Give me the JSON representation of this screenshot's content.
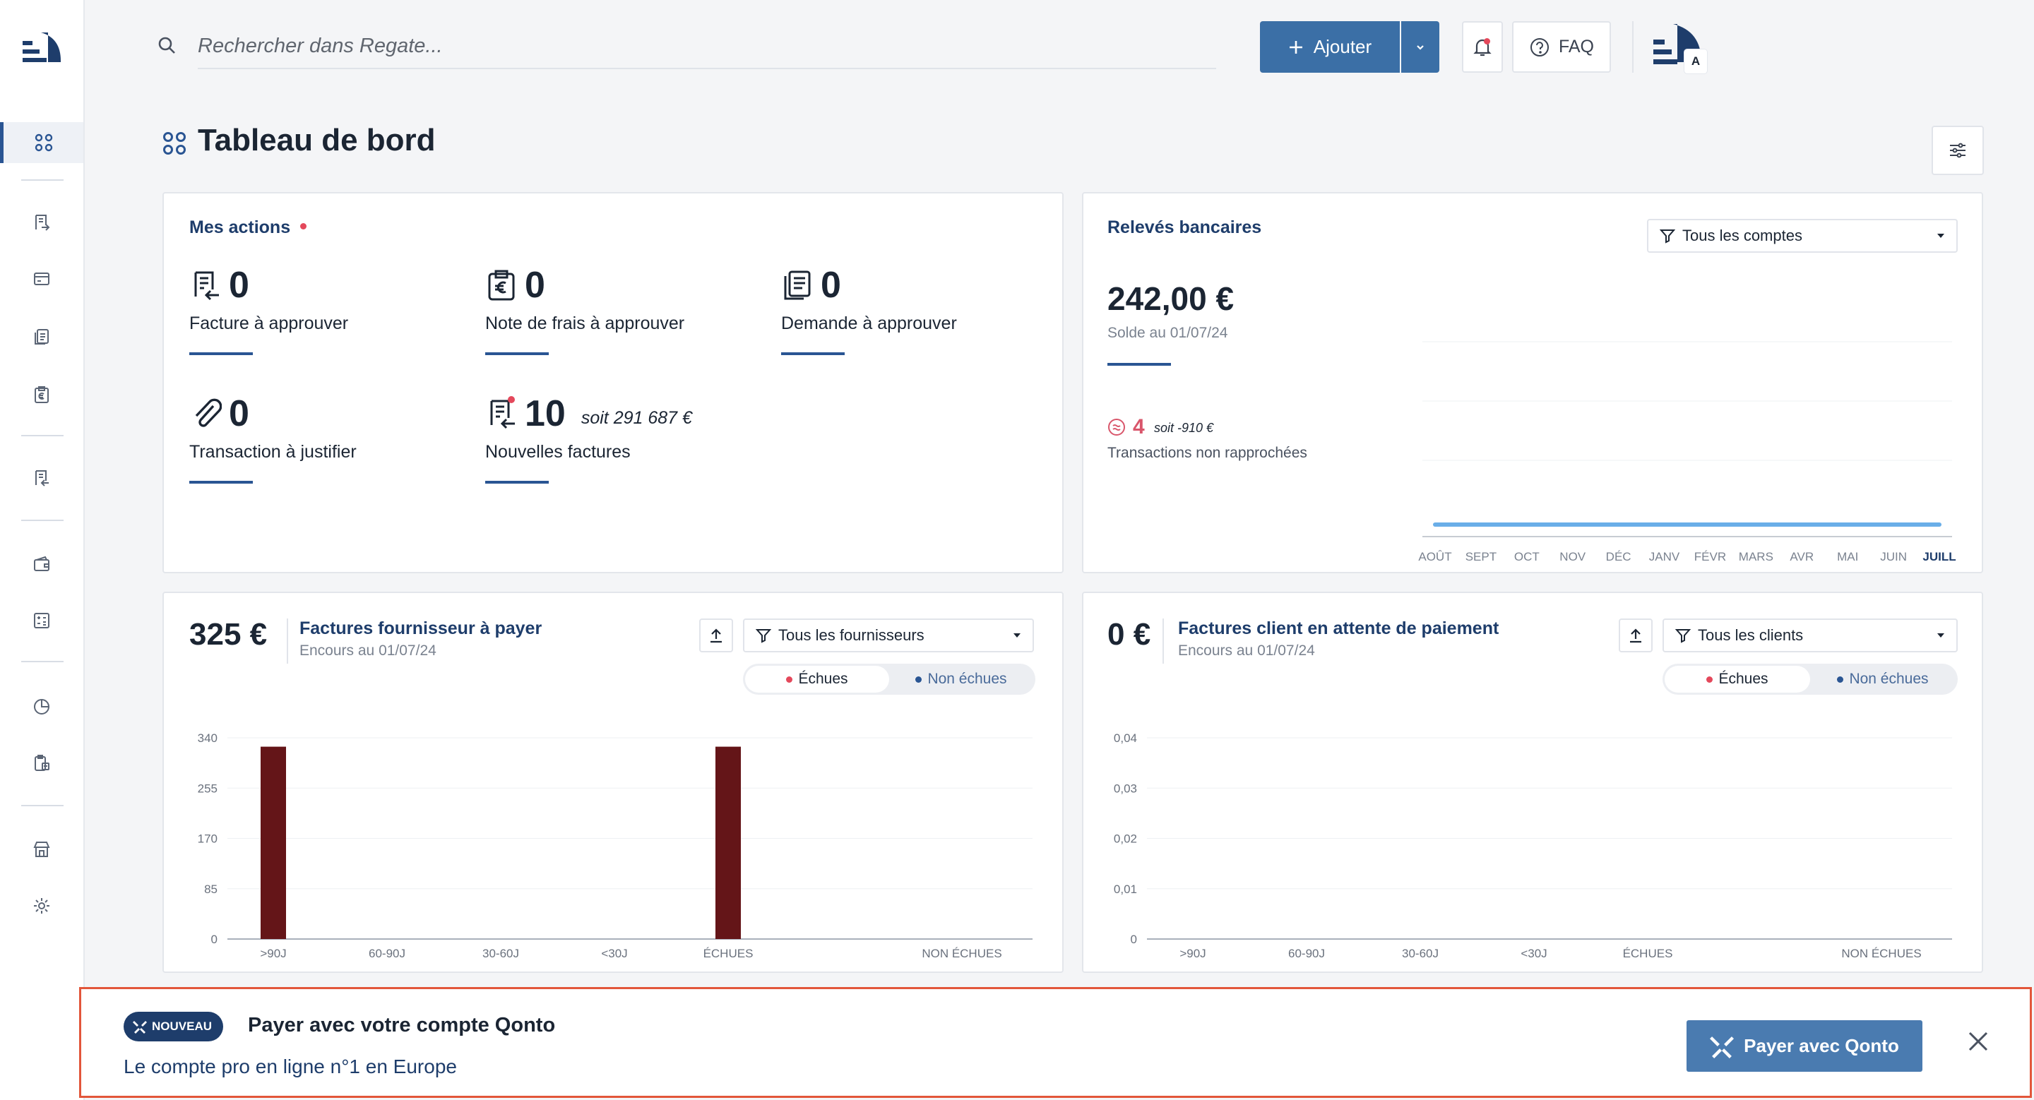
{
  "header": {
    "search_placeholder": "Rechercher dans Regate...",
    "add_label": "Ajouter",
    "faq_label": "FAQ",
    "avatar_initial": "A"
  },
  "page": {
    "title": "Tableau de bord"
  },
  "actions": {
    "title": "Mes actions",
    "items": [
      {
        "icon": "invoice-icon",
        "value": "0",
        "label": "Facture à approuver"
      },
      {
        "icon": "expense-note-icon",
        "value": "0",
        "label": "Note de frais à approuver"
      },
      {
        "icon": "documents-icon",
        "value": "0",
        "label": "Demande à approuver"
      },
      {
        "icon": "paperclip-icon",
        "value": "0",
        "label": "Transaction à justifier"
      },
      {
        "icon": "invoice-icon",
        "value": "10",
        "extra": "soit 291 687 €",
        "label": "Nouvelles factures"
      }
    ]
  },
  "bank": {
    "title": "Relevés bancaires",
    "filter": "Tous les comptes",
    "balance": "242,00 €",
    "balance_date": "Solde au 01/07/24",
    "unmatched_count": "4",
    "unmatched_amount": "soit -910 €",
    "unmatched_label": "Transactions non rapprochées",
    "months": [
      "AOÛT",
      "SEPT",
      "OCT",
      "NOV",
      "DÉC",
      "JANV",
      "FÉVR",
      "MARS",
      "AVR",
      "MAI",
      "JUIN",
      "JUILL"
    ],
    "active_month": "JUILL"
  },
  "supplier": {
    "amount": "325 €",
    "title": "Factures fournisseur à payer",
    "subtitle": "Encours au 01/07/24",
    "filter": "Tous les fournisseurs",
    "seg_due": "Échues",
    "seg_not_due": "Non échues"
  },
  "client": {
    "amount": "0 €",
    "title": "Factures client en attente de paiement",
    "subtitle": "Encours au 01/07/24",
    "filter": "Tous les clients",
    "seg_due": "Échues",
    "seg_not_due": "Non échues"
  },
  "banner": {
    "badge": "NOUVEAU",
    "title": "Payer avec votre compte Qonto",
    "subtitle": "Le compte pro en ligne n°1 en Europe",
    "button": "Payer avec Qonto"
  },
  "colors": {
    "accent": "#3b6fa6",
    "navy": "#1e3d6b",
    "bar": "#641518",
    "alert": "#e4485b",
    "line": "#6aaee8"
  },
  "chart_data": [
    {
      "type": "bar",
      "categories": [
        ">90J",
        "60-90J",
        "30-60J",
        "<30J",
        "ÉCHUES",
        "NON ÉCHUES"
      ],
      "values": [
        325,
        0,
        0,
        0,
        325,
        0
      ],
      "yticks": [
        "0",
        "85",
        "170",
        "255",
        "340"
      ],
      "ylim": [
        0,
        340
      ]
    },
    {
      "type": "bar",
      "categories": [
        ">90J",
        "60-90J",
        "30-60J",
        "<30J",
        "ÉCHUES",
        "NON ÉCHUES"
      ],
      "values": [
        0,
        0,
        0,
        0,
        0,
        0
      ],
      "yticks": [
        "0",
        "0,01",
        "0,02",
        "0,03",
        "0,04"
      ],
      "ylim": [
        0,
        0.04
      ]
    },
    {
      "type": "line",
      "categories": [
        "AOÛT",
        "SEPT",
        "OCT",
        "NOV",
        "DÉC",
        "JANV",
        "FÉVR",
        "MARS",
        "AVR",
        "MAI",
        "JUIN",
        "JUILL"
      ],
      "values": [
        242,
        242,
        242,
        242,
        242,
        242,
        242,
        242,
        242,
        242,
        242,
        242
      ]
    }
  ]
}
